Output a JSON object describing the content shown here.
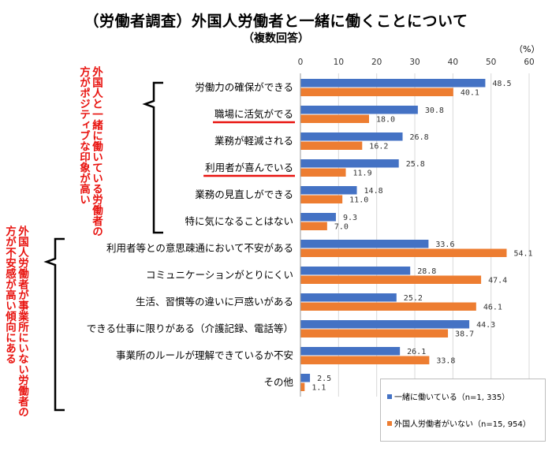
{
  "title": "（労働者調査）外国人労働者と一緒に働くことについて",
  "subtitle": "（複数回答）",
  "unit": "（%）",
  "notes": {
    "positive": "外国人と一緒に働いている労働者の方がポジティブな印象が高い",
    "negative": "外国人労働者が事業所にいない労働者の方が不安感が高い傾向にある"
  },
  "colors": {
    "series1": "#4472c4",
    "series2": "#ed7d31",
    "underline": "#e8130f",
    "note": "#e8130f"
  },
  "chart_data": {
    "type": "bar",
    "orientation": "horizontal",
    "title": "（労働者調査）外国人労働者と一緒に働くことについて",
    "subtitle": "（複数回答）",
    "xlim": [
      0,
      60
    ],
    "xticks": [
      0,
      10,
      20,
      30,
      40,
      50,
      60
    ],
    "grid": true,
    "legend_position": "bottom-right",
    "categories": [
      "労働力の確保ができる",
      "職場に活気がでる",
      "業務が軽減される",
      "利用者が喜んでいる",
      "業務の見直しができる",
      "特に気になることはない",
      "利用者等との意思疎通において不安がある",
      "コミュニケーションがとりにくい",
      "生活、習慣等の違いに戸惑いがある",
      "できる仕事に限りがある（介護記録、電話等）",
      "事業所のルールが理解できているか不安",
      "その他"
    ],
    "underlined_categories": [
      "職場に活気がでる",
      "利用者が喜んでいる"
    ],
    "series": [
      {
        "name": "一緒に働いている（n=1, 335）",
        "values": [
          48.5,
          30.8,
          26.8,
          25.8,
          14.8,
          9.3,
          33.6,
          28.8,
          25.2,
          44.3,
          26.1,
          2.5
        ],
        "labels": [
          "48.5",
          "30.8",
          "26.8",
          "25.8",
          "14.8",
          "9.3",
          "33.6",
          "28.8",
          "25.2",
          "44.3",
          "26.1",
          "2.5"
        ]
      },
      {
        "name": "外国人労働者がいない（n=15, 954）",
        "values": [
          40.1,
          18.0,
          16.2,
          11.9,
          11.0,
          7.0,
          54.1,
          47.4,
          46.1,
          38.7,
          33.8,
          1.1
        ],
        "labels": [
          "40.1",
          "18.0",
          "16.2",
          "11.9",
          "11.0",
          "7.0",
          "54.1",
          "47.4",
          "46.1",
          "38.7",
          "33.8",
          "1.1"
        ]
      }
    ]
  }
}
